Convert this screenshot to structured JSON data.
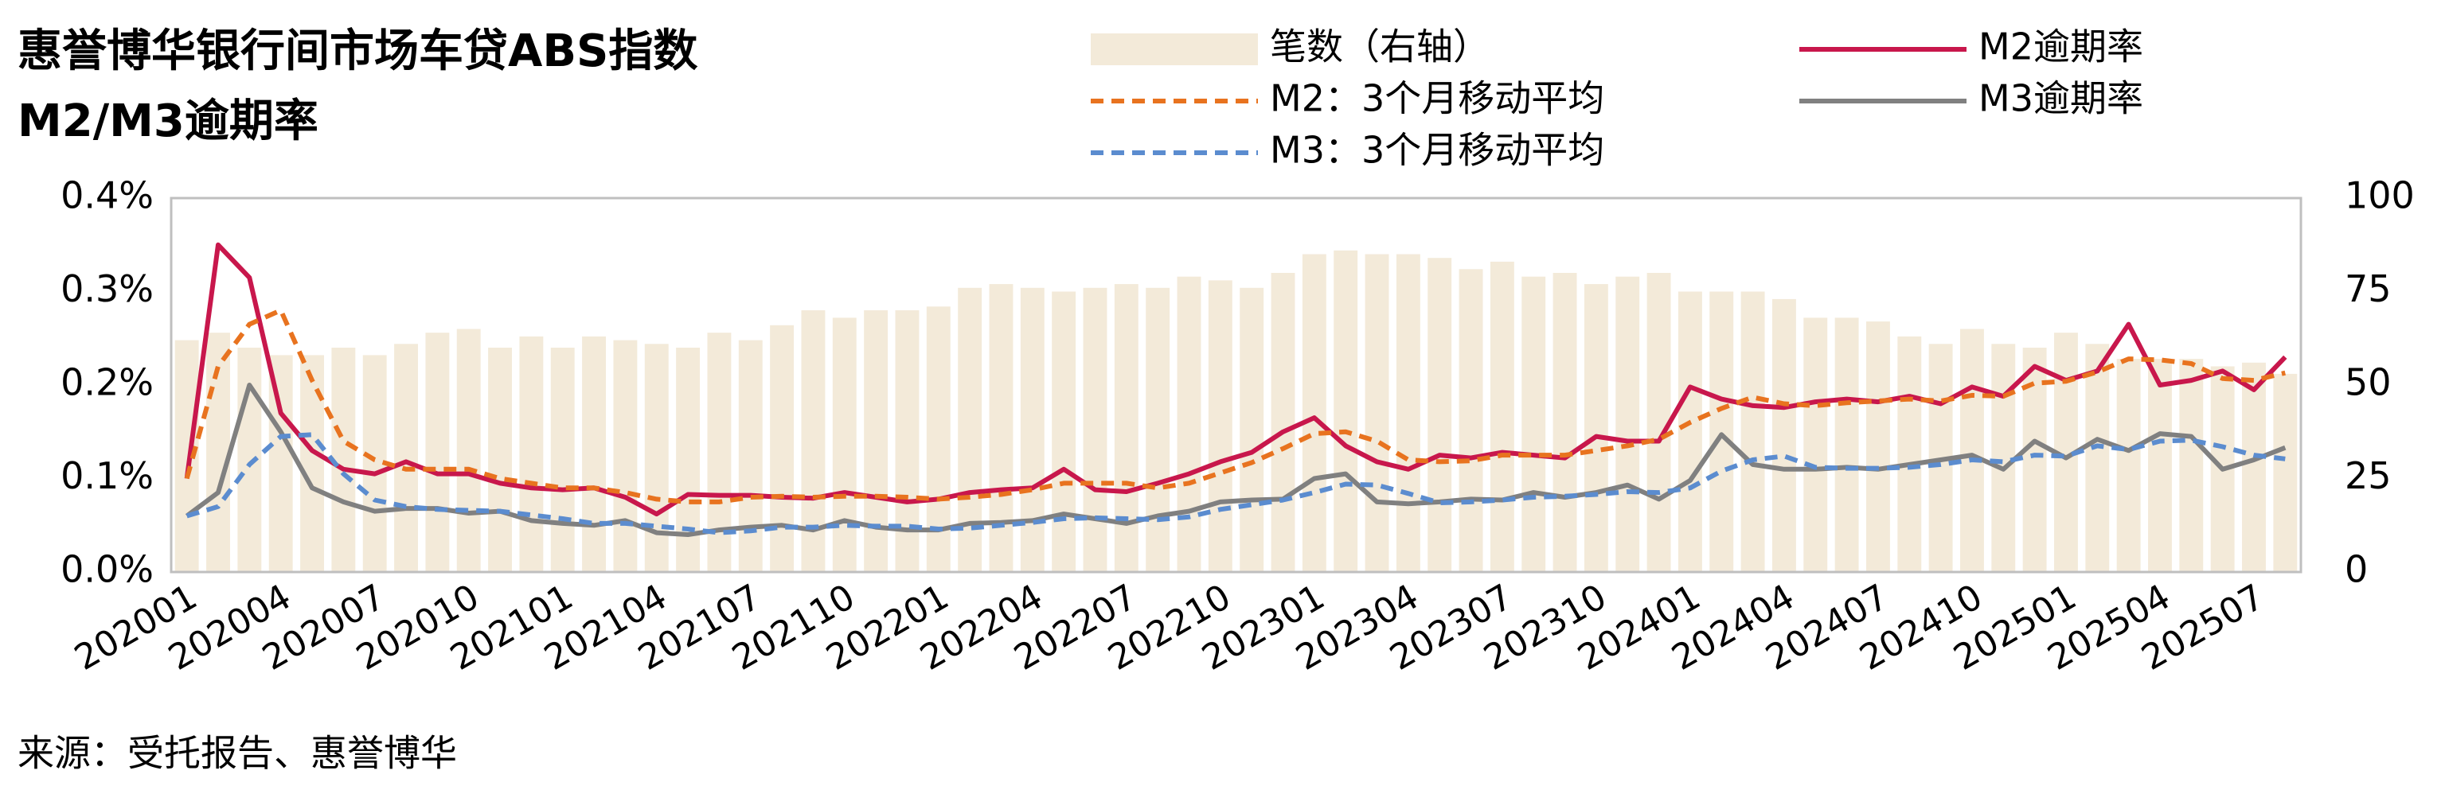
{
  "chart_data": {
    "type": "bar-line",
    "title": [
      "惠誉博华银行间市场车贷ABS指数",
      "M2/M3逾期率"
    ],
    "source": "来源：受托报告、惠誉博华",
    "categories": [
      "202001",
      null,
      null,
      "202004",
      null,
      null,
      "202007",
      null,
      null,
      "202010",
      null,
      null,
      "202101",
      null,
      null,
      "202104",
      null,
      null,
      "202107",
      null,
      null,
      "202110",
      null,
      null,
      "202201",
      null,
      null,
      "202204",
      null,
      null,
      "202207",
      null,
      null,
      "202210",
      null,
      null,
      "202301",
      null,
      null,
      "202304",
      null,
      null,
      "202307",
      null,
      null,
      "202310",
      null,
      null,
      "202401",
      null,
      null,
      "202404",
      null,
      null,
      "202407",
      null,
      null,
      "202410",
      null,
      null,
      "202501",
      null,
      null,
      "202504",
      null,
      null,
      "202507",
      null
    ],
    "ylim": [
      0,
      0.4
    ],
    "yticks": [
      {
        "value": 0,
        "label": "0.0%"
      },
      {
        "value": 0.1,
        "label": "0.1%"
      },
      {
        "value": 0.2,
        "label": "0.2%"
      },
      {
        "value": 0.3,
        "label": "0.3%"
      },
      {
        "value": 0.4,
        "label": "0.4%"
      }
    ],
    "y2lim": [
      0,
      100
    ],
    "y2ticks": [
      0,
      25,
      50,
      75,
      100
    ],
    "grid": false,
    "series": [
      {
        "name": "笔数（右轴）",
        "type": "bar",
        "axis": "y2",
        "color": "#f3ead9",
        "values": [
          62,
          64,
          60,
          58,
          58,
          60,
          58,
          61,
          64,
          65,
          60,
          63,
          60,
          63,
          62,
          61,
          60,
          64,
          62,
          66,
          70,
          68,
          70,
          70,
          71,
          76,
          77,
          76,
          75,
          76,
          77,
          76,
          79,
          78,
          76,
          80,
          85,
          86,
          85,
          85,
          84,
          81,
          83,
          79,
          80,
          77,
          79,
          80,
          75,
          75,
          75,
          73,
          68,
          68,
          67,
          63,
          61,
          65,
          61,
          60,
          64,
          61,
          57,
          57,
          57,
          55,
          56,
          53
        ]
      },
      {
        "name": "M2逾期率",
        "type": "line",
        "color": "#c8174c",
        "dash": false,
        "values": [
          0.1,
          0.35,
          0.315,
          0.17,
          0.13,
          0.11,
          0.105,
          0.118,
          0.105,
          0.105,
          0.095,
          0.09,
          0.088,
          0.09,
          0.08,
          0.062,
          0.083,
          0.082,
          0.082,
          0.08,
          0.079,
          0.085,
          0.08,
          0.075,
          0.078,
          0.085,
          0.088,
          0.09,
          0.11,
          0.088,
          0.086,
          0.095,
          0.105,
          0.118,
          0.128,
          0.15,
          0.165,
          0.135,
          0.118,
          0.11,
          0.125,
          0.122,
          0.128,
          0.125,
          0.122,
          0.145,
          0.14,
          0.14,
          0.198,
          0.185,
          0.178,
          0.176,
          0.182,
          0.185,
          0.182,
          0.188,
          0.18,
          0.198,
          0.188,
          0.22,
          0.205,
          0.215,
          0.265,
          0.2,
          0.205,
          0.215,
          0.195,
          0.23
        ]
      },
      {
        "name": "M3逾期率",
        "type": "line",
        "color": "#808080",
        "dash": false,
        "values": [
          0.06,
          0.085,
          0.2,
          0.15,
          0.09,
          0.075,
          0.065,
          0.068,
          0.068,
          0.063,
          0.065,
          0.055,
          0.052,
          0.05,
          0.055,
          0.042,
          0.04,
          0.045,
          0.048,
          0.05,
          0.045,
          0.055,
          0.048,
          0.045,
          0.045,
          0.052,
          0.053,
          0.055,
          0.062,
          0.057,
          0.052,
          0.06,
          0.065,
          0.075,
          0.077,
          0.078,
          0.1,
          0.105,
          0.075,
          0.073,
          0.075,
          0.078,
          0.077,
          0.085,
          0.08,
          0.085,
          0.093,
          0.078,
          0.098,
          0.147,
          0.115,
          0.11,
          0.11,
          0.112,
          0.11,
          0.115,
          0.12,
          0.125,
          0.11,
          0.14,
          0.122,
          0.142,
          0.13,
          0.148,
          0.145,
          0.11,
          0.12,
          0.133
        ]
      },
      {
        "name": "M2：3个月移动平均",
        "type": "line",
        "color": "#e8731f",
        "dash": true,
        "values": [
          0.1,
          0.22,
          0.265,
          0.28,
          0.205,
          0.14,
          0.12,
          0.11,
          0.11,
          0.11,
          0.1,
          0.095,
          0.09,
          0.09,
          0.085,
          0.078,
          0.075,
          0.075,
          0.08,
          0.081,
          0.08,
          0.081,
          0.081,
          0.08,
          0.078,
          0.08,
          0.083,
          0.088,
          0.095,
          0.095,
          0.095,
          0.09,
          0.095,
          0.106,
          0.117,
          0.132,
          0.148,
          0.15,
          0.14,
          0.12,
          0.118,
          0.119,
          0.125,
          0.125,
          0.125,
          0.13,
          0.135,
          0.142,
          0.16,
          0.175,
          0.187,
          0.18,
          0.178,
          0.181,
          0.183,
          0.185,
          0.183,
          0.189,
          0.188,
          0.202,
          0.204,
          0.214,
          0.228,
          0.227,
          0.223,
          0.207,
          0.205,
          0.213
        ]
      },
      {
        "name": "M3：3个月移动平均",
        "type": "line",
        "color": "#5b8ccf",
        "dash": true,
        "values": [
          0.06,
          0.07,
          0.115,
          0.145,
          0.147,
          0.105,
          0.077,
          0.07,
          0.067,
          0.066,
          0.065,
          0.061,
          0.057,
          0.052,
          0.052,
          0.049,
          0.046,
          0.042,
          0.044,
          0.048,
          0.048,
          0.05,
          0.049,
          0.049,
          0.046,
          0.047,
          0.05,
          0.053,
          0.057,
          0.058,
          0.057,
          0.056,
          0.059,
          0.067,
          0.072,
          0.077,
          0.085,
          0.094,
          0.093,
          0.084,
          0.074,
          0.075,
          0.077,
          0.08,
          0.081,
          0.083,
          0.086,
          0.085,
          0.09,
          0.108,
          0.12,
          0.124,
          0.112,
          0.111,
          0.111,
          0.112,
          0.115,
          0.12,
          0.118,
          0.125,
          0.124,
          0.135,
          0.131,
          0.14,
          0.141,
          0.134,
          0.125,
          0.121
        ]
      }
    ]
  }
}
